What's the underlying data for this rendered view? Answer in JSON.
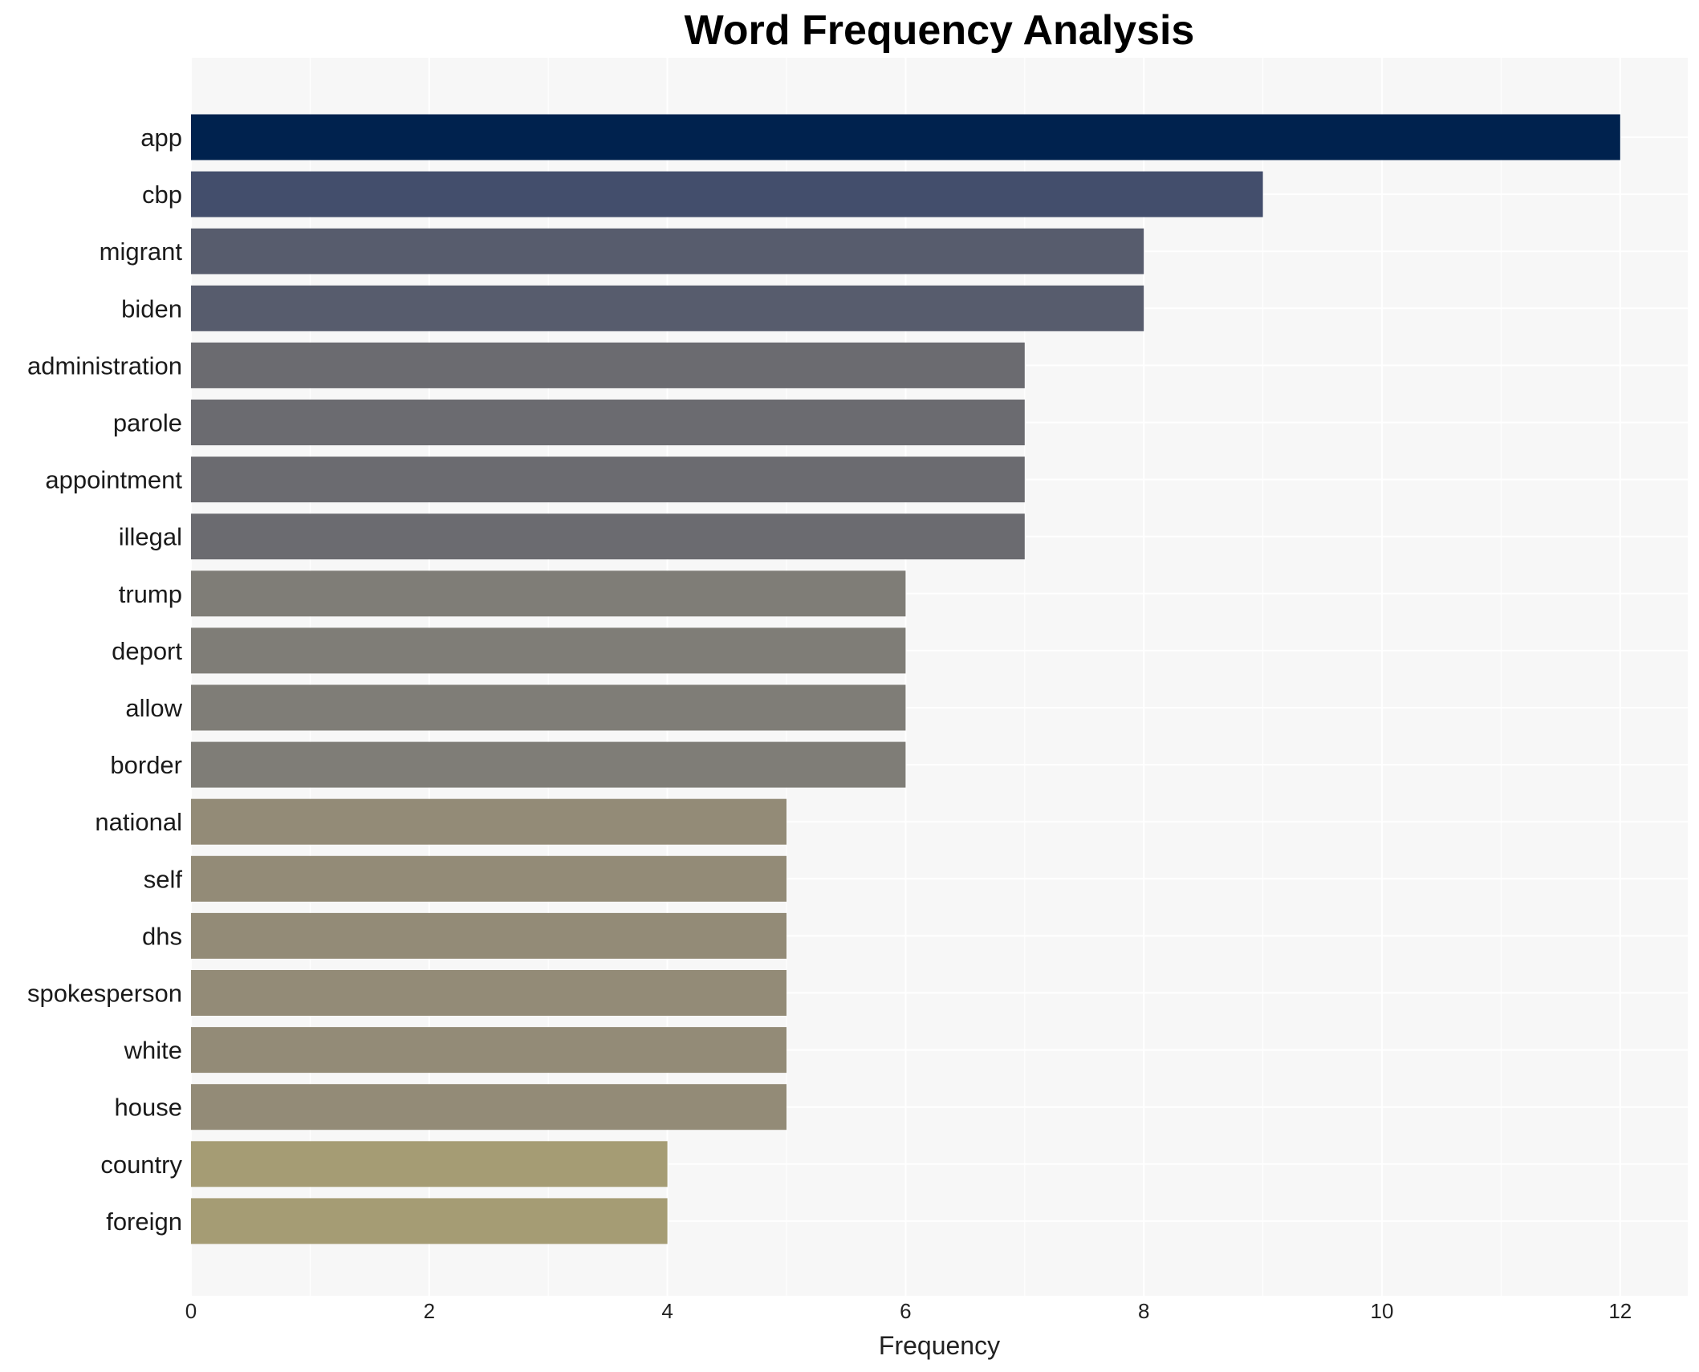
{
  "chart_data": {
    "type": "bar",
    "orientation": "horizontal",
    "title": "Word Frequency Analysis",
    "xlabel": "Frequency",
    "ylabel": "",
    "xlim": [
      0,
      12.6
    ],
    "xticks": [
      0,
      2,
      4,
      6,
      8,
      10,
      12
    ],
    "grid": true,
    "categories": [
      "app",
      "cbp",
      "migrant",
      "biden",
      "administration",
      "parole",
      "appointment",
      "illegal",
      "trump",
      "deport",
      "allow",
      "border",
      "national",
      "self",
      "dhs",
      "spokesperson",
      "white",
      "house",
      "country",
      "foreign"
    ],
    "values": [
      12,
      9,
      8,
      8,
      7,
      7,
      7,
      7,
      6,
      6,
      6,
      6,
      5,
      5,
      5,
      5,
      5,
      5,
      4,
      4
    ],
    "colors": {
      "12": "#00224e",
      "9": "#434e6c",
      "8": "#575c6d",
      "7": "#6b6b70",
      "6": "#7f7d77",
      "5": "#938b77",
      "4": "#a59c74"
    },
    "background": "#f7f7f7",
    "gridline_color": "#ffffff"
  }
}
